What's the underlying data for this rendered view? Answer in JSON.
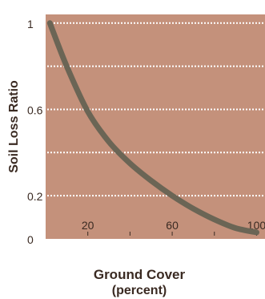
{
  "chart_data": {
    "type": "line",
    "title": "",
    "ylabel": "Soil Loss Ratio",
    "xlabel": "Ground Cover",
    "xlabel_sub": "(percent)",
    "xlim": [
      0,
      104
    ],
    "ylim": [
      0,
      1.04
    ],
    "x_ticks": [
      20,
      60,
      100
    ],
    "x_tick_labels": [
      "20",
      "60",
      "100"
    ],
    "x_minor_ticks": [
      40,
      80
    ],
    "y_ticks": [
      0,
      0.2,
      0.6,
      1
    ],
    "y_tick_labels": [
      "0",
      "0.2",
      "0.6",
      "1"
    ],
    "y_gridlines": [
      0.2,
      0.4,
      0.6,
      0.8,
      1.0
    ],
    "grid": "dotted horizontal",
    "colors": {
      "plot_bg": "#c4917b",
      "line": "#6b6555",
      "grid": "#ffffff",
      "text": "#3a2a22"
    },
    "series": [
      {
        "x": [
          2,
          10,
          20,
          30,
          40,
          50,
          60,
          70,
          80,
          90,
          100
        ],
        "y": [
          1.0,
          0.8,
          0.59,
          0.45,
          0.35,
          0.27,
          0.2,
          0.14,
          0.09,
          0.05,
          0.03
        ]
      }
    ]
  }
}
